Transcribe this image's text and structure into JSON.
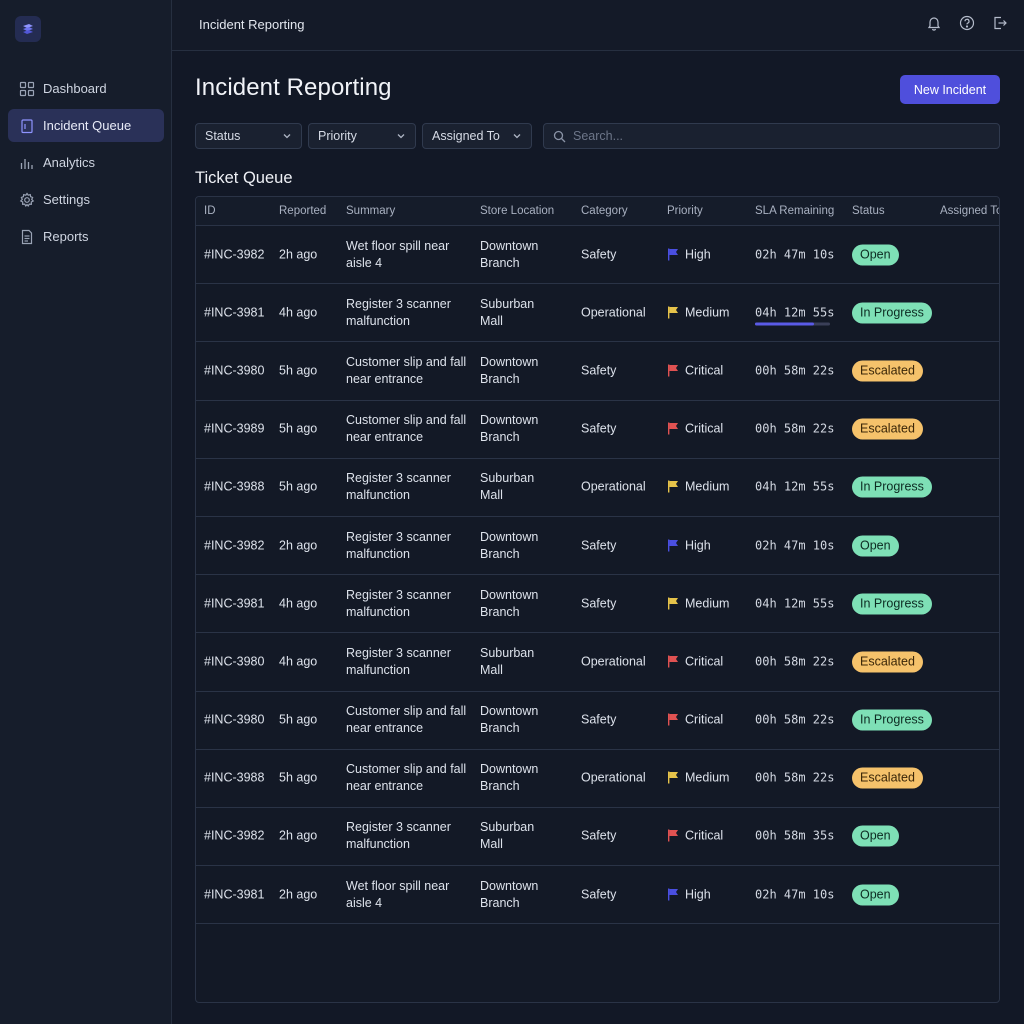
{
  "app": {
    "crumb": "Incident Reporting"
  },
  "sidebar": {
    "items": [
      {
        "label": "Dashboard",
        "icon": "grid-icon",
        "active": false
      },
      {
        "label": "Incident Queue",
        "icon": "clipboard-icon",
        "active": true
      },
      {
        "label": "Analytics",
        "icon": "bar-chart-icon",
        "active": false
      },
      {
        "label": "Settings",
        "icon": "gear-icon",
        "active": false
      },
      {
        "label": "Reports",
        "icon": "document-icon",
        "active": false
      }
    ]
  },
  "header": {
    "title": "Incident Reporting",
    "new_button": "New Incident"
  },
  "filters": {
    "status": "Status",
    "priority": "Priority",
    "assigned": "Assigned To",
    "search_placeholder": "Search..."
  },
  "queue": {
    "title": "Ticket Queue",
    "columns": [
      "ID",
      "Reported",
      "Summary",
      "Store Location",
      "Category",
      "Priority",
      "SLA Remaining",
      "Status",
      "Assigned To"
    ],
    "rows": [
      {
        "id": "#INC-3982",
        "reported": "2h ago",
        "summary": "Wet floor spill near aisle 4",
        "location": "Downtown Branch",
        "category": "Safety",
        "priority": "High",
        "sla": "02h 47m 10s",
        "status": "Open"
      },
      {
        "id": "#INC-3981",
        "reported": "4h ago",
        "summary": "Register 3 scanner malfunction",
        "location": "Suburban Mall",
        "category": "Operational",
        "priority": "Medium",
        "sla": "04h 12m 55s",
        "sla_progress": 0.78,
        "status": "In Progress"
      },
      {
        "id": "#INC-3980",
        "reported": "5h ago",
        "summary": "Customer slip and fall near entrance",
        "location": "Downtown Branch",
        "category": "Safety",
        "priority": "Critical",
        "sla": "00h 58m 22s",
        "status": "Escalated"
      },
      {
        "id": "#INC-3989",
        "reported": "5h ago",
        "summary": "Customer slip and fall near entrance",
        "location": "Downtown Branch",
        "category": "Safety",
        "priority": "Critical",
        "sla": "00h 58m 22s",
        "status": "Escalated"
      },
      {
        "id": "#INC-3988",
        "reported": "5h ago",
        "summary": "Register 3 scanner malfunction",
        "location": "Suburban Mall",
        "category": "Operational",
        "priority": "Medium",
        "sla": "04h 12m 55s",
        "status": "In Progress"
      },
      {
        "id": "#INC-3982",
        "reported": "2h ago",
        "summary": "Register 3 scanner malfunction",
        "location": "Downtown Branch",
        "category": "Safety",
        "priority": "High",
        "sla": "02h 47m 10s",
        "status": "Open"
      },
      {
        "id": "#INC-3981",
        "reported": "4h ago",
        "summary": "Register 3 scanner malfunction",
        "location": "Downtown Branch",
        "category": "Safety",
        "priority": "Medium",
        "sla": "04h 12m 55s",
        "status": "In Progress"
      },
      {
        "id": "#INC-3980",
        "reported": "4h ago",
        "summary": "Register 3 scanner malfunction",
        "location": "Suburban Mall",
        "category": "Operational",
        "priority": "Critical",
        "sla": "00h 58m 22s",
        "status": "Escalated"
      },
      {
        "id": "#INC-3980",
        "reported": "5h ago",
        "summary": "Customer slip and fall near entrance",
        "location": "Downtown Branch",
        "category": "Safety",
        "priority": "Critical",
        "sla": "00h 58m 22s",
        "status": "In Progress"
      },
      {
        "id": "#INC-3988",
        "reported": "5h ago",
        "summary": "Customer slip and fall near entrance",
        "location": "Downtown Branch",
        "category": "Operational",
        "priority": "Medium",
        "sla": "00h 58m 22s",
        "status": "Escalated"
      },
      {
        "id": "#INC-3982",
        "reported": "2h ago",
        "summary": "Register 3 scanner malfunction",
        "location": "Suburban Mall",
        "category": "Safety",
        "priority": "Critical",
        "sla": "00h 58m 35s",
        "status": "Open"
      },
      {
        "id": "#INC-3981",
        "reported": "2h ago",
        "summary": "Wet floor spill near aisle 4",
        "location": "Downtown Branch",
        "category": "Safety",
        "priority": "High",
        "sla": "02h 47m 10s",
        "status": "Open"
      }
    ]
  },
  "colors": {
    "accent": "#4f4fdc",
    "priority": {
      "High": "#4a4fe0",
      "Medium": "#e6c34a",
      "Critical": "#e05252"
    },
    "status": {
      "Open": {
        "bg": "#7ee0b6",
        "fg": "#0d2b22"
      },
      "In Progress": {
        "bg": "#7ee0b6",
        "fg": "#0d2b22"
      },
      "Escalated": {
        "bg": "#f5c26b",
        "fg": "#3a2608"
      }
    }
  }
}
